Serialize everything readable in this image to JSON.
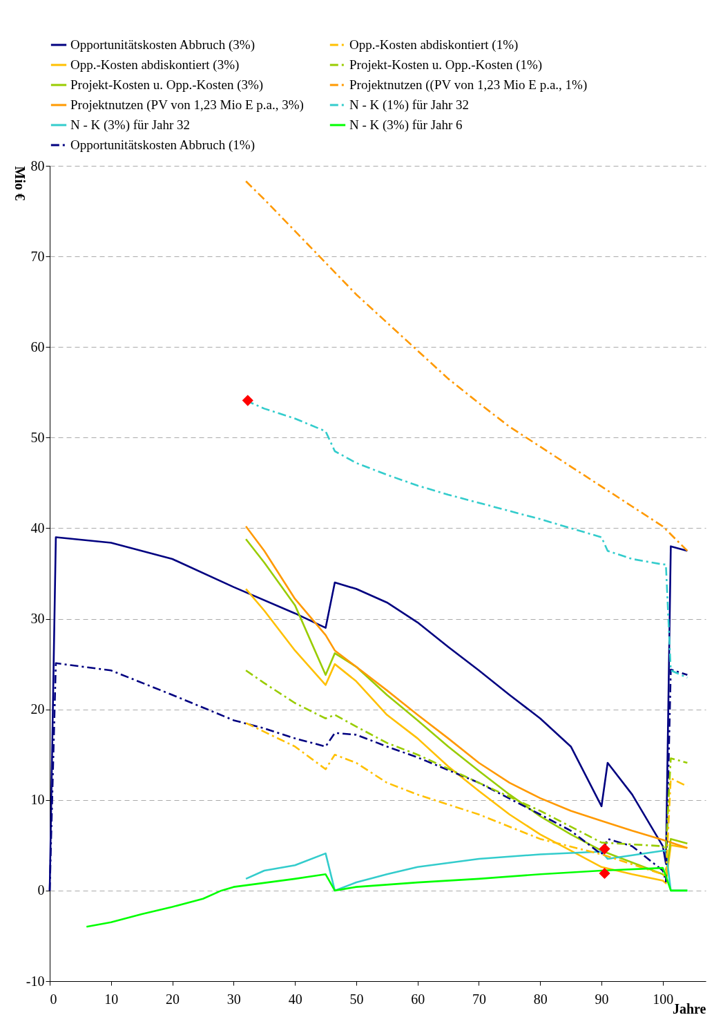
{
  "chart_data": {
    "type": "line",
    "xlabel": "Jahre",
    "ylabel": "Mio €",
    "xlim": [
      0,
      107
    ],
    "xticks": [
      0,
      10,
      20,
      30,
      40,
      50,
      60,
      70,
      80,
      90,
      100
    ],
    "ylim": [
      -10,
      80
    ],
    "yticks": [
      -10,
      0,
      10,
      20,
      30,
      40,
      50,
      60,
      70,
      80
    ],
    "grid": "y",
    "legend": "top",
    "series": [
      {
        "name": "Opportunitätskosten Abbruch (3%)",
        "color": "#000080",
        "line_style": "solid",
        "x": [
          0,
          1,
          10,
          20,
          30,
          40,
          45,
          46.5,
          50,
          55,
          60,
          65,
          70,
          75,
          80,
          85,
          90,
          91,
          95,
          100,
          100.5,
          101.3,
          104
        ],
        "values": [
          0,
          39,
          38.4,
          36.6,
          33.5,
          30.6,
          29,
          34,
          33.3,
          31.8,
          29.6,
          26.9,
          24.3,
          21.6,
          19,
          15.9,
          9.3,
          14.1,
          10.6,
          4.9,
          3,
          38,
          37.5
        ]
      },
      {
        "name": "Opp.-Kosten abdiskontiert (3%)",
        "color": "#ffc000",
        "line_style": "solid",
        "x": [
          32,
          35,
          40,
          45,
          46.5,
          50,
          55,
          60,
          65,
          70,
          75,
          80,
          85,
          90,
          95,
          100,
          100.5,
          101.3,
          104
        ],
        "values": [
          33.3,
          30.9,
          26.5,
          22.7,
          25,
          23.1,
          19.4,
          16.8,
          13.7,
          11,
          8.4,
          6.2,
          4.4,
          2.6,
          1.8,
          1.1,
          0.8,
          5,
          4.7
        ]
      },
      {
        "name": "Projekt-Kosten u. Opp.-Kosten  (3%)",
        "color": "#99cc00",
        "line_style": "solid",
        "x": [
          32,
          35,
          40,
          45,
          46.5,
          50,
          55,
          60,
          65,
          70,
          75,
          80,
          85,
          90,
          95,
          100,
          100.5,
          101.3,
          104
        ],
        "values": [
          38.8,
          36.2,
          31.5,
          23.8,
          26.2,
          24.7,
          21.6,
          18.8,
          15.9,
          13.2,
          10.6,
          8.2,
          6.2,
          4.4,
          3.1,
          1.8,
          1.5,
          5.7,
          5.2
        ]
      },
      {
        "name": "Projektnutzen (PV von 1,23 Mio E p.a., 3%)",
        "color": "#ff9900",
        "line_style": "solid",
        "x": [
          32,
          35,
          40,
          45,
          46.5,
          50,
          55,
          60,
          65,
          70,
          75,
          80,
          85,
          90,
          95,
          100,
          104
        ],
        "values": [
          40.2,
          37.5,
          32.2,
          28.2,
          26.5,
          24.7,
          22.1,
          19.4,
          16.8,
          14.1,
          11.9,
          10.2,
          8.8,
          7.7,
          6.6,
          5.6,
          4.7
        ]
      },
      {
        "name": "N - K (3%) für Jahr 32",
        "color": "#33cccc",
        "line_style": "solid",
        "x": [
          32,
          35,
          40,
          45,
          46.5,
          50,
          55,
          60,
          70,
          80,
          90,
          91,
          100,
          100.5,
          101.3,
          104
        ],
        "values": [
          1.3,
          2.2,
          2.8,
          4.1,
          0,
          0.9,
          1.8,
          2.6,
          3.5,
          4,
          4.3,
          3.5,
          4.4,
          4.4,
          0,
          0
        ]
      },
      {
        "name": "Opportunitätskosten Abbruch (1%)",
        "color": "#000080",
        "line_style": "dashed",
        "x": [
          0,
          1,
          10,
          20,
          30,
          35,
          40,
          45,
          46.5,
          50,
          55,
          60,
          70,
          80,
          85,
          90,
          91,
          95,
          100,
          100.5,
          101.3,
          104
        ],
        "values": [
          0,
          25.1,
          24.3,
          21.6,
          18.8,
          17.9,
          16.8,
          15.9,
          17.4,
          17.2,
          15.9,
          14.7,
          11.9,
          8.4,
          6.6,
          4,
          5.7,
          4.9,
          2.2,
          1,
          24.4,
          23.8
        ]
      },
      {
        "name": "Opp.-Kosten abdiskontiert (1%)",
        "color": "#ffc000",
        "line_style": "dashed",
        "x": [
          32,
          40,
          45,
          46.5,
          50,
          55,
          60,
          70,
          80,
          90,
          100,
          100.5,
          101.3,
          104
        ],
        "values": [
          18.5,
          15.9,
          13.4,
          15,
          14.1,
          11.9,
          10.6,
          8.4,
          5.7,
          4,
          1.8,
          1.5,
          12.4,
          11.5
        ]
      },
      {
        "name": "Projekt-Kosten u. Opp.-Kosten  (1%)",
        "color": "#99cc00",
        "line_style": "dashed",
        "x": [
          32,
          35,
          40,
          45,
          46.5,
          50,
          55,
          60,
          70,
          80,
          90,
          100,
          100.5,
          101.3,
          104
        ],
        "values": [
          24.3,
          22.9,
          20.7,
          19,
          19.4,
          18.1,
          16.3,
          15,
          11.9,
          8.8,
          5.3,
          4.9,
          4.5,
          14.6,
          14.1
        ]
      },
      {
        "name": "Projektnutzen ((PV von 1,23 Mio E p.a., 1%)",
        "color": "#ff9900",
        "line_style": "dashed",
        "x": [
          32,
          35,
          40,
          45,
          50,
          55,
          60,
          65,
          70,
          75,
          80,
          85,
          90,
          95,
          100,
          104
        ],
        "values": [
          78.3,
          76.3,
          72.8,
          69.3,
          65.8,
          62.7,
          59.6,
          56.5,
          53.8,
          51.2,
          49,
          46.8,
          44.6,
          42.4,
          40.2,
          37.5
        ]
      },
      {
        "name": "N - K (1%) für Jahr 32",
        "color": "#33cccc",
        "line_style": "dashed",
        "x": [
          32,
          35,
          40,
          45,
          46.5,
          50,
          55,
          60,
          65,
          70,
          75,
          80,
          85,
          90,
          91,
          95,
          100,
          100.5,
          101.3,
          104
        ],
        "values": [
          54.1,
          53.2,
          52.1,
          50.7,
          48.5,
          47.2,
          45.9,
          44.7,
          43.7,
          42.8,
          41.9,
          41,
          40,
          39,
          37.5,
          36.6,
          36,
          36,
          24.3,
          23.5
        ]
      },
      {
        "name": "N - K (3%) für Jahr 6",
        "color": "#00ff00",
        "line_style": "solid",
        "x": [
          6,
          10,
          15,
          20,
          25,
          28,
          30,
          40,
          45,
          46.5,
          50,
          60,
          70,
          80,
          90,
          100,
          100.5,
          101.3,
          104
        ],
        "values": [
          -4,
          -3.5,
          -2.6,
          -1.8,
          -0.9,
          0,
          0.4,
          1.3,
          1.8,
          0,
          0.4,
          0.9,
          1.3,
          1.8,
          2.2,
          2.5,
          1.6,
          0,
          0
        ]
      },
      {
        "type": "scatter",
        "color": "#ff0000",
        "marker": "diamond",
        "x": [
          32.3,
          90.5,
          90.5
        ],
        "values": [
          54.1,
          4.6,
          1.9
        ]
      }
    ]
  }
}
